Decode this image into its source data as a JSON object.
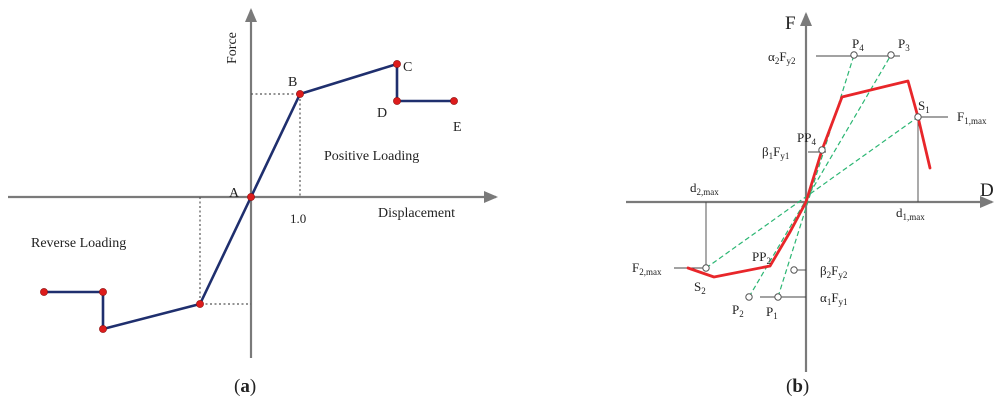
{
  "panel_a": {
    "caption": "(a)",
    "caption_paren_open": "(",
    "caption_letter": "a",
    "caption_paren_close": ")",
    "axis_force": "Force",
    "axis_displacement": "Displacement",
    "tick_1_0": "1.0",
    "positive_loading": "Positive Loading",
    "reverse_loading": "Reverse Loading",
    "point_a": "A",
    "point_b": "B",
    "point_c": "C",
    "point_d": "D",
    "point_e": "E",
    "curve_color": "#1f2f6e",
    "marker_color": "#dd1c1c"
  },
  "panel_b": {
    "caption": "(b)",
    "caption_paren_open": "(",
    "caption_letter": "b",
    "caption_paren_close": ")",
    "axis_f": "F",
    "axis_d": "D",
    "p1": {
      "base": "P",
      "sub": "1"
    },
    "p2": {
      "base": "P",
      "sub": "2"
    },
    "p3": {
      "base": "P",
      "sub": "3"
    },
    "p4": {
      "base": "P",
      "sub": "4"
    },
    "pp2": {
      "base": "PP",
      "sub": "2"
    },
    "pp4": {
      "base": "PP",
      "sub": "4"
    },
    "s1": {
      "base": "S",
      "sub": "1"
    },
    "s2": {
      "base": "S",
      "sub": "2"
    },
    "alpha2_fy2": {
      "pre": "α",
      "pre_sub": "2",
      "base": "F",
      "sub": "y2"
    },
    "beta1_fy1": {
      "pre": "β",
      "pre_sub": "1",
      "base": "F",
      "sub": "y1"
    },
    "beta2_fy2": {
      "pre": "β",
      "pre_sub": "2",
      "base": "F",
      "sub": "y2"
    },
    "alpha1_fy1": {
      "pre": "α",
      "pre_sub": "1",
      "base": "F",
      "sub": "y1"
    },
    "f1_max": {
      "base": "F",
      "sub": "1,max"
    },
    "f2_max": {
      "base": "F",
      "sub": "2,max"
    },
    "d1_max": {
      "base": "d",
      "sub": "1,max"
    },
    "d2_max": {
      "base": "d",
      "sub": "2,max"
    },
    "curve_color": "#e8262a",
    "guide_color": "#2bb673"
  }
}
